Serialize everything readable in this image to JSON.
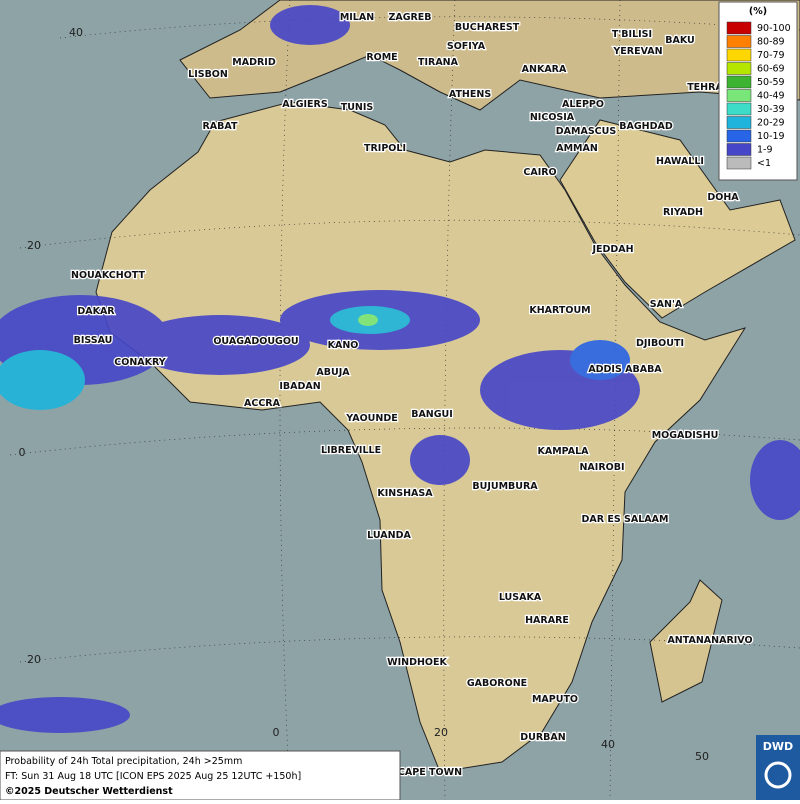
{
  "map": {
    "cities": [
      "MILAN",
      "ZAGREB",
      "BUCHAREST",
      "SOFIYA",
      "ROME",
      "TIRANA",
      "LISBON",
      "MADRID",
      "ANKARA",
      "BAKU",
      "T'BILISI",
      "YEREVAN",
      "TEHRA",
      "ALGIERS",
      "TUNIS",
      "ATHENS",
      "RABAT",
      "ALEPPO",
      "NICOSIA",
      "BAGHDAD",
      "DAMASCUS",
      "TRIPOLI",
      "AMMAN",
      "HAWALLI",
      "CAIRO",
      "DOHA",
      "RIYADH",
      "JEDDAH",
      "NOUAKCHOTT",
      "DAKAR",
      "SAN'A",
      "KHARTOUM",
      "BISSAU",
      "OUAGADOUGOU",
      "DJIBOUTI",
      "KANO",
      "CONAKRY",
      "ADDIS ABABA",
      "ABUJA",
      "IBADAN",
      "ACCRA",
      "YAOUNDE",
      "BANGUI",
      "MOGADISHU",
      "LIBREVILLE",
      "KAMPALA",
      "NAIROBI",
      "KINSHASA",
      "BUJUMBURA",
      "DAR ES SALAAM",
      "LUANDA",
      "LUSAKA",
      "HARARE",
      "ANTANANARIVO",
      "WINDHOEK",
      "GABORONE",
      "MAPUTO",
      "DURBAN",
      "CAPE TOWN"
    ],
    "grid_labels": [
      "40",
      "20",
      "0",
      "20",
      "0",
      "20",
      "40",
      "50"
    ],
    "legend": {
      "title": "(%)",
      "entries": [
        {
          "label": "90-100",
          "color": "#c80000"
        },
        {
          "label": "80-89",
          "color": "#ff7f00"
        },
        {
          "label": "70-79",
          "color": "#ffd700"
        },
        {
          "label": "60-69",
          "color": "#b4e600"
        },
        {
          "label": "50-59",
          "color": "#3cb432"
        },
        {
          "label": "40-49",
          "color": "#78e678"
        },
        {
          "label": "30-39",
          "color": "#3cdcc8"
        },
        {
          "label": "20-29",
          "color": "#1eb4dc"
        },
        {
          "label": "10-19",
          "color": "#2864e6"
        },
        {
          "label": "1-9",
          "color": "#4646c8"
        },
        {
          "label": "<1",
          "color": "#bbbbbb"
        }
      ]
    },
    "caption": [
      "Probability of 24h Total precipitation, 24h >25mm",
      "FT: Sun 31 Aug 18 UTC [ICON EPS 2025 Aug 25 12UTC +150h]",
      "©2025 Deutscher Wetterdienst"
    ],
    "logo": "DWD"
  }
}
